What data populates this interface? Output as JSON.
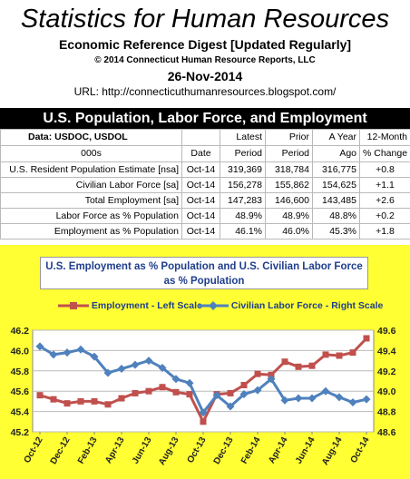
{
  "header": {
    "title": "Statistics for Human Resources",
    "subtitle": "Economic Reference Digest [Updated Regularly]",
    "copyright": "© 2014 Connecticut Human Resource Reports, LLC",
    "date": "26-Nov-2014",
    "url": "URL:  http://connecticuthumanresources.blogspot.com/"
  },
  "section_title": "U.S. Population, Labor Force, and Employment",
  "table": {
    "header_row1": [
      "Data:  USDOC, USDOL",
      "",
      "Latest",
      "Prior",
      "A Year",
      "12-Month"
    ],
    "header_row2": [
      "000s",
      "Date",
      "Period",
      "Period",
      "Ago",
      "% Change"
    ],
    "rows": [
      [
        "U.S. Resident Population Estimate [nsa]",
        "Oct-14",
        "319,369",
        "318,784",
        "316,775",
        "+0.8"
      ],
      [
        "Civilian Labor Force [sa]",
        "Oct-14",
        "156,278",
        "155,862",
        "154,625",
        "+1.1"
      ],
      [
        "Total Employment [sa]",
        "Oct-14",
        "147,283",
        "146,600",
        "143,485",
        "+2.6"
      ],
      [
        "Labor Force as % Population",
        "Oct-14",
        "48.9%",
        "48.9%",
        "48.8%",
        "+0.2"
      ],
      [
        "Employment as % Population",
        "Oct-14",
        "46.1%",
        "46.0%",
        "45.3%",
        "+1.8"
      ]
    ]
  },
  "chart_data": {
    "type": "line",
    "title": "U.S. Employment as % Population  and U.S. Civilian Labor Force as % Population",
    "categories": [
      "Oct-12",
      "Nov-12",
      "Dec-12",
      "Jan-13",
      "Feb-13",
      "Mar-13",
      "Apr-13",
      "May-13",
      "Jun-13",
      "Jul-13",
      "Aug-13",
      "Sep-13",
      "Oct-13",
      "Nov-13",
      "Dec-13",
      "Jan-14",
      "Feb-14",
      "Mar-14",
      "Apr-14",
      "May-14",
      "Jun-14",
      "Jul-14",
      "Aug-14",
      "Sep-14",
      "Oct-14"
    ],
    "x_tick_labels": [
      "Oct-12",
      "Dec-12",
      "Feb-13",
      "Apr-13",
      "Jun-13",
      "Aug-13",
      "Oct-13",
      "Dec-13",
      "Feb-14",
      "Apr-14",
      "Jun-14",
      "Aug-14",
      "Oct-14"
    ],
    "series": [
      {
        "name": "Employment - Left Scale",
        "axis": "left",
        "color": "#c0504d",
        "marker": "square",
        "values": [
          45.56,
          45.52,
          45.48,
          45.5,
          45.5,
          45.47,
          45.53,
          45.58,
          45.6,
          45.64,
          45.59,
          45.57,
          45.3,
          45.57,
          45.58,
          45.66,
          45.77,
          45.76,
          45.89,
          45.84,
          45.85,
          45.96,
          45.95,
          45.98,
          46.12
        ]
      },
      {
        "name": "Civilian Labor Force - Right Scale",
        "axis": "right",
        "color": "#4f81bd",
        "marker": "diamond",
        "values": [
          49.44,
          49.36,
          49.38,
          49.41,
          49.34,
          49.18,
          49.22,
          49.26,
          49.3,
          49.23,
          49.12,
          49.08,
          48.79,
          48.96,
          48.85,
          48.97,
          49.01,
          49.12,
          48.91,
          48.93,
          48.93,
          49.0,
          48.94,
          48.89,
          48.92
        ]
      }
    ],
    "y_left": {
      "range": [
        45.2,
        46.2
      ],
      "ticks": [
        "45.2",
        "45.4",
        "45.6",
        "45.8",
        "46.0",
        "46.2"
      ]
    },
    "y_right": {
      "range": [
        48.6,
        49.6
      ],
      "ticks": [
        "48.6",
        "48.8",
        "49.0",
        "49.2",
        "49.4",
        "49.6"
      ]
    },
    "grid": "horizontal",
    "legend_position": "top",
    "background_color": "#ffff33",
    "plot_background": "#ffffff"
  }
}
